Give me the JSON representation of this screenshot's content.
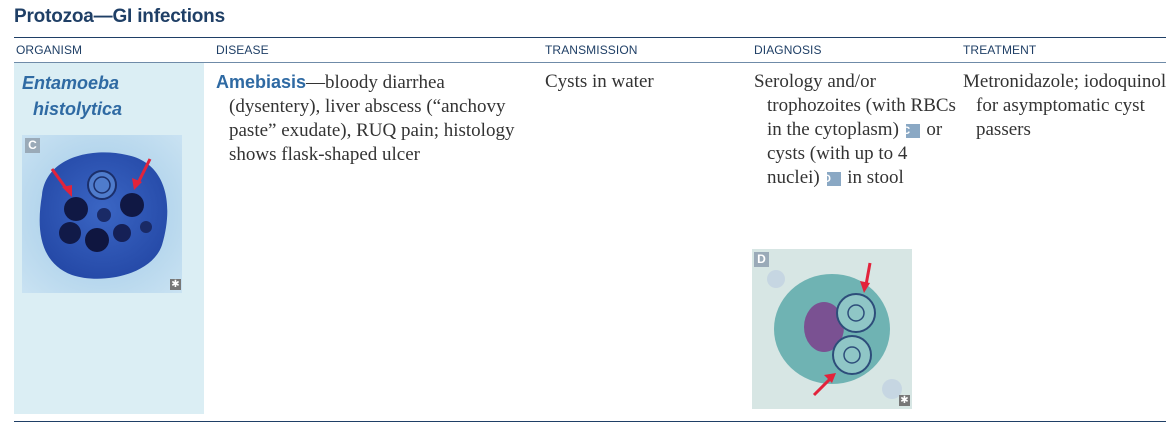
{
  "title": "Protozoa—GI infections",
  "headers": [
    "ORGANISM",
    "DISEASE",
    "TRANSMISSION",
    "DIAGNOSIS",
    "TREATMENT"
  ],
  "organism": {
    "line1": "Entamoeba",
    "line2": "histolytica",
    "image_label": "C"
  },
  "disease": {
    "name": "Amebiasis",
    "text": "—bloody diarrhea (dysentery), liver abscess (“anchovy paste” exudate), RUQ pain; histology shows flask-shaped ulcer"
  },
  "transmission": "Cysts in water",
  "diagnosis": {
    "part1": "Serology and/or trophozoites (with RBCs in the cytoplasm)",
    "badge_c": "C",
    "part2": "or cysts (with up to 4 nuclei)",
    "badge_d": "D",
    "part3": "in stool",
    "image_label": "D"
  },
  "treatment": "Metronidazole; iodoquinol for asymptomatic cyst passers",
  "colors": {
    "accent": "#1f3f66",
    "organism_text": "#2f6aa3",
    "organism_bg": "#dbeef4"
  }
}
